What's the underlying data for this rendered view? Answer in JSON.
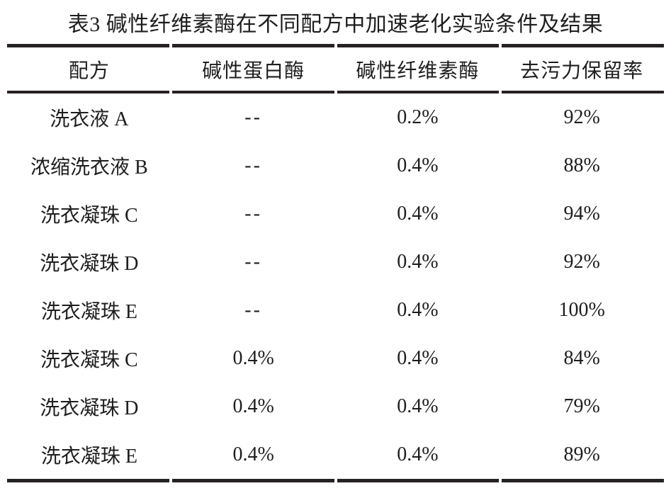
{
  "title": "表3 碱性纤维素酶在不同配方中加速老化实验条件及结果",
  "table": {
    "headers": [
      "配方",
      "碱性蛋白酶",
      "碱性纤维素酶",
      "去污力保留率"
    ],
    "rows": [
      [
        "洗衣液 A",
        "--",
        "0.2%",
        "92%"
      ],
      [
        "浓缩洗衣液 B",
        "--",
        "0.4%",
        "88%"
      ],
      [
        "洗衣凝珠 C",
        "--",
        "0.4%",
        "94%"
      ],
      [
        "洗衣凝珠 D",
        "--",
        "0.4%",
        "92%"
      ],
      [
        "洗衣凝珠 E",
        "--",
        "0.4%",
        "100%"
      ],
      [
        "洗衣凝珠 C",
        "0.4%",
        "0.4%",
        "84%"
      ],
      [
        "洗衣凝珠 D",
        "0.4%",
        "0.4%",
        "79%"
      ],
      [
        "洗衣凝珠 E",
        "0.4%",
        "0.4%",
        "89%"
      ]
    ]
  },
  "colors": {
    "text": "#1f1d1e",
    "rule": "#262223",
    "background": "#ffffff"
  }
}
